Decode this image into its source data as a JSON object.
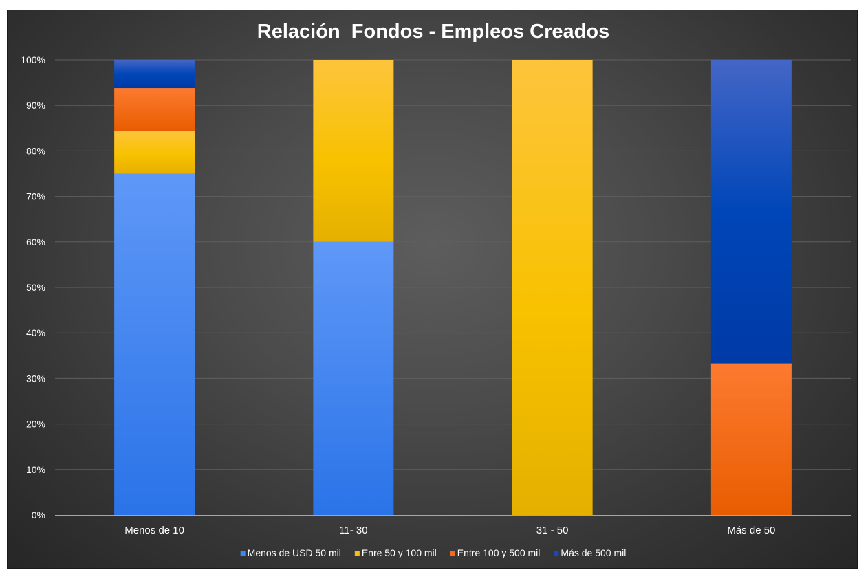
{
  "chart_data": {
    "type": "bar",
    "stacked": true,
    "normalized": true,
    "title": "Relación  Fondos - Empleos Creados",
    "xlabel": "",
    "ylabel": "",
    "ylim": [
      0,
      100
    ],
    "y_ticks": [
      "0%",
      "10%",
      "20%",
      "30%",
      "40%",
      "50%",
      "60%",
      "70%",
      "80%",
      "90%",
      "100%"
    ],
    "categories": [
      "Menos de 10",
      "11- 30",
      "31 - 50",
      "Más de 50"
    ],
    "series": [
      {
        "name": "Menos de USD 50 mil",
        "color": "#3d86f5",
        "values": [
          75,
          60,
          0,
          0
        ]
      },
      {
        "name": "Enre 50 y 100 mil",
        "color": "#f7bf14",
        "values": [
          9.4,
          40,
          100,
          0
        ]
      },
      {
        "name": "Entre 100 y 500 mil",
        "color": "#f86a14",
        "values": [
          9.4,
          0,
          0,
          33.3
        ]
      },
      {
        "name": "Más de 500 mil",
        "color": "#1e46b4",
        "values": [
          6.2,
          0,
          0,
          66.7
        ]
      }
    ],
    "legend_position": "bottom",
    "grid": true
  }
}
